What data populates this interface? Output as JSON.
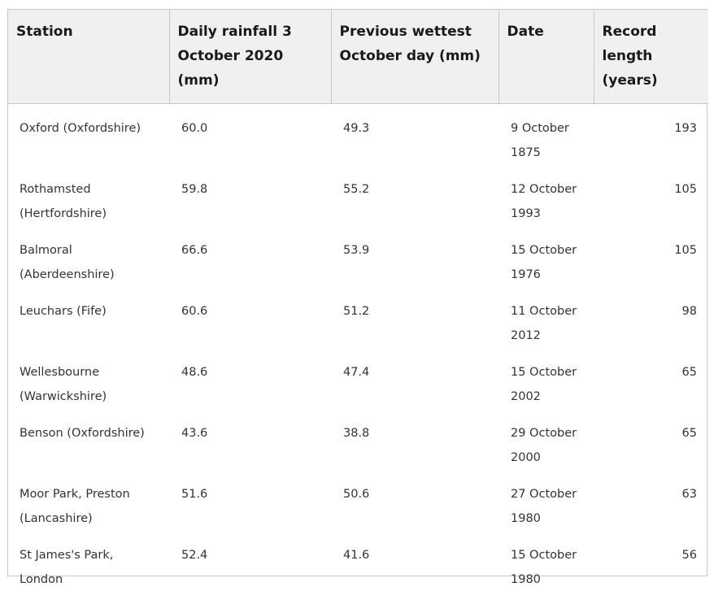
{
  "table": {
    "headers": {
      "station": "Station",
      "daily_rainfall": "Daily rainfall 3 October 2020 (mm)",
      "previous_wettest": "Previous wettest October day (mm)",
      "date": "Date",
      "record_length": "Record length (years)"
    },
    "rows": [
      {
        "station": "Oxford (Oxfordshire)",
        "daily_rainfall": "60.0",
        "previous_wettest": "49.3",
        "date": "9 October 1875",
        "record_length": "193"
      },
      {
        "station": "Rothamsted (Hertfordshire)",
        "daily_rainfall": "59.8",
        "previous_wettest": "55.2",
        "date": "12 October 1993",
        "record_length": "105"
      },
      {
        "station": "Balmoral (Aberdeenshire)",
        "daily_rainfall": "66.6",
        "previous_wettest": "53.9",
        "date": "15 October 1976",
        "record_length": "105"
      },
      {
        "station": "Leuchars (Fife)",
        "daily_rainfall": "60.6",
        "previous_wettest": "51.2",
        "date": "11 October 2012",
        "record_length": "98"
      },
      {
        "station": "Wellesbourne (Warwickshire)",
        "daily_rainfall": "48.6",
        "previous_wettest": "47.4",
        "date": "15 October 2002",
        "record_length": "65"
      },
      {
        "station": "Benson (Oxfordshire)",
        "daily_rainfall": "43.6",
        "previous_wettest": "38.8",
        "date": "29 October 2000",
        "record_length": "65"
      },
      {
        "station": "Moor Park, Preston (Lancashire)",
        "daily_rainfall": "51.6",
        "previous_wettest": "50.6",
        "date": "27 October 1980",
        "record_length": "63"
      },
      {
        "station": "St James's Park, London",
        "daily_rainfall": "52.4",
        "previous_wettest": "41.6",
        "date": "15 October 1980",
        "record_length": "56"
      }
    ]
  }
}
